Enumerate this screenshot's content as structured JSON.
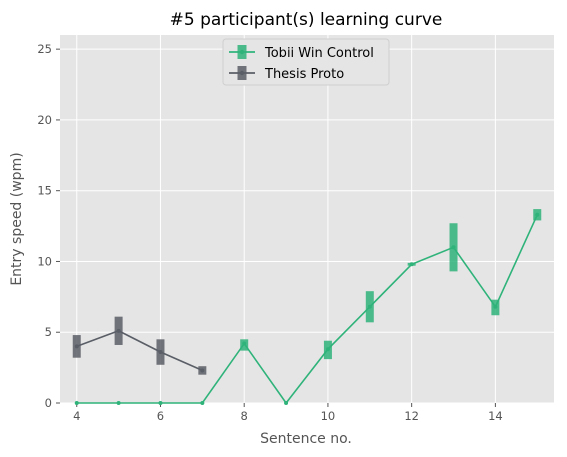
{
  "chart_data": {
    "type": "line",
    "title": "#5 participant(s) learning curve",
    "xlabel": "Sentence no.",
    "ylabel": "Entry speed (wpm)",
    "xlim": [
      3.6,
      15.4
    ],
    "ylim": [
      0,
      26
    ],
    "xticks": [
      4,
      6,
      8,
      10,
      12,
      14
    ],
    "yticks": [
      0,
      5,
      10,
      15,
      20,
      25
    ],
    "grid": true,
    "legend_position": "top-center",
    "background": "#e5e5e5",
    "series": [
      {
        "name": "Tobii Win Control",
        "color": "#2fb37a",
        "x": [
          4,
          5,
          6,
          7,
          8,
          9,
          10,
          11,
          12,
          13,
          14,
          15
        ],
        "y": [
          0,
          0,
          0,
          0,
          4.2,
          0,
          3.8,
          6.8,
          9.8,
          11.0,
          6.8,
          13.3
        ],
        "err_low": [
          0,
          0,
          0,
          0,
          3.7,
          0,
          3.1,
          5.7,
          9.7,
          9.3,
          6.2,
          12.9
        ],
        "err_high": [
          0,
          0,
          0,
          0,
          4.5,
          0,
          4.4,
          7.9,
          9.9,
          12.7,
          7.3,
          13.7
        ]
      },
      {
        "name": "Thesis Proto",
        "color": "#5a5e66",
        "x": [
          4,
          5,
          6,
          7
        ],
        "y": [
          4.0,
          5.1,
          3.6,
          2.3
        ],
        "err_low": [
          3.2,
          4.1,
          2.7,
          2.0
        ],
        "err_high": [
          4.8,
          6.1,
          4.5,
          2.6
        ]
      }
    ]
  }
}
